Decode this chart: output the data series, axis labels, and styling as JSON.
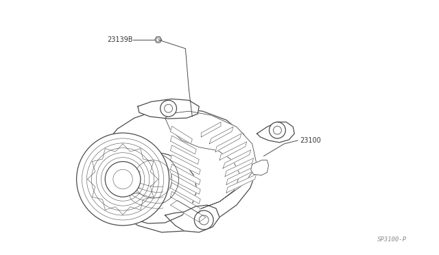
{
  "background_color": "#ffffff",
  "fig_width": 6.4,
  "fig_height": 3.72,
  "dpi": 100,
  "label_23139B": "23139B",
  "label_23100": "23100",
  "watermark": "SP3100-P",
  "line_color": "#4a4a4a",
  "fill_white": "#ffffff",
  "fill_light": "#f5f5f5",
  "text_color": "#333333",
  "text_fontsize": 7.0,
  "watermark_fontsize": 6.5
}
